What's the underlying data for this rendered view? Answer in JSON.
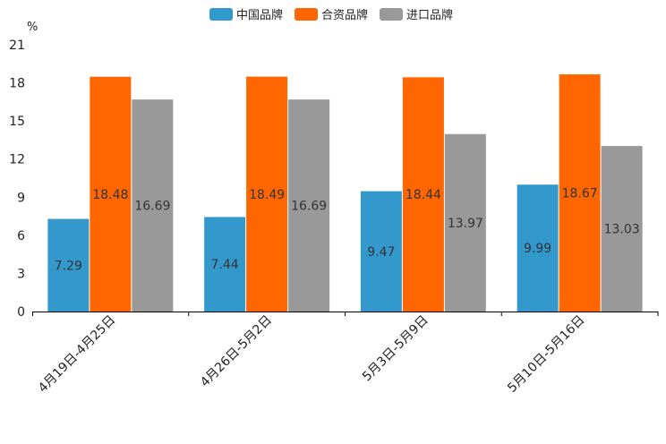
{
  "chart_data": {
    "type": "bar",
    "title": "",
    "xlabel": "",
    "ylabel": "%",
    "ylim": [
      0,
      21
    ],
    "yticks": [
      0,
      3,
      6,
      9,
      12,
      15,
      18,
      21
    ],
    "categories": [
      "4月19日-4月25日",
      "4月26日-5月2日",
      "5月3日-5月9日",
      "5月10日-5月16日"
    ],
    "series": [
      {
        "name": "中国品牌",
        "color": "#3399cc",
        "values": [
          7.29,
          7.44,
          9.47,
          9.99
        ]
      },
      {
        "name": "合资品牌",
        "color": "#ff6600",
        "values": [
          18.48,
          18.49,
          18.44,
          18.67
        ]
      },
      {
        "name": "进口品牌",
        "color": "#999999",
        "values": [
          16.69,
          16.69,
          13.97,
          13.03
        ]
      }
    ],
    "legend_position": "top-center"
  }
}
